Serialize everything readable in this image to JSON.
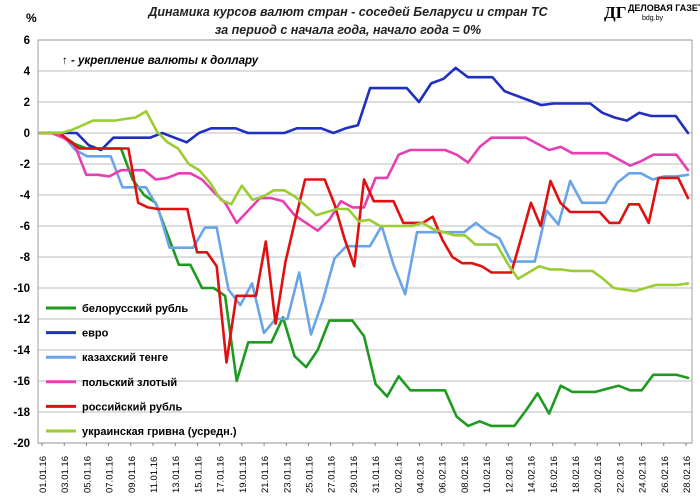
{
  "chart_data": {
    "type": "line",
    "title": "Динамика курсов валют стран - соседей Беларуси и стран ТС",
    "subtitle": "за период с начала года, начало года = 0%",
    "ylabel": "%",
    "annotation": "↑ - укрепление валюты к доллару",
    "ylim": [
      -20,
      6
    ],
    "yticks": [
      6,
      4,
      2,
      0,
      -2,
      -4,
      -6,
      -8,
      -10,
      -12,
      -14,
      -16,
      -18,
      -20
    ],
    "xlabels": [
      "01.01.16",
      "03.01.16",
      "05.01.16",
      "07.01.16",
      "09.01.16",
      "11.01.16",
      "13.01.16",
      "15.01.16",
      "17.01.16",
      "19.01.16",
      "21.01.16",
      "23.01.16",
      "25.01.16",
      "27.01.16",
      "29.01.16",
      "31.01.16",
      "02.02.16",
      "04.02.16",
      "06.02.16",
      "08.02.16",
      "10.02.16",
      "12.02.16",
      "14.02.16",
      "16.02.16",
      "18.02.16",
      "20.02.16",
      "22.02.16",
      "24.02.16",
      "26.02.16",
      "28.02.16"
    ],
    "grid": "horizontal",
    "legend_position": "bottom-left",
    "series": [
      {
        "name": "белорусский рубль",
        "color": "#1e9a1e",
        "values": [
          0,
          0,
          -0.2,
          -0.7,
          -1,
          -1,
          -1,
          -1,
          -3,
          -4,
          -4.5,
          -6.5,
          -8.5,
          -8.5,
          -10,
          -10,
          -10.5,
          -16,
          -13.5,
          -13.5,
          -13.5,
          -11.9,
          -14.4,
          -15.1,
          -14,
          -12.1,
          -12.1,
          -12.1,
          -13.1,
          -16.2,
          -17,
          -15.7,
          -16.6,
          -16.6,
          -16.6,
          -16.6,
          -18.3,
          -18.9,
          -18.6,
          -18.9,
          -18.9,
          -18.9,
          -17.9,
          -16.8,
          -18.1,
          -16.3,
          -16.7,
          -16.7,
          -16.7,
          -16.5,
          -16.3,
          -16.6,
          -16.6,
          -15.6,
          -15.6,
          -15.6,
          -15.8
        ]
      },
      {
        "name": "евро",
        "color": "#1f2fbf",
        "values": [
          0,
          0,
          0,
          0,
          -0.8,
          -1.1,
          -0.3,
          -0.3,
          -0.3,
          -0.3,
          0,
          -0.3,
          -0.6,
          0,
          0.3,
          0.3,
          0.3,
          0,
          0,
          0,
          0,
          0.3,
          0.3,
          0.3,
          0,
          0.3,
          0.5,
          2.9,
          2.9,
          2.9,
          2.9,
          2.0,
          3.2,
          3.5,
          4.2,
          3.6,
          3.6,
          3.6,
          2.7,
          2.4,
          2.1,
          1.8,
          1.9,
          1.9,
          1.9,
          1.9,
          1.3,
          1.0,
          0.8,
          1.3,
          1.1,
          1.1,
          1.1,
          0
        ]
      },
      {
        "name": "казахский тенге",
        "color": "#6aa4e8",
        "values": [
          0,
          0,
          -0.2,
          -1.1,
          -1.5,
          -1.5,
          -1.5,
          -3.5,
          -3.5,
          -3.5,
          -4.8,
          -7.4,
          -7.4,
          -7.4,
          -6.1,
          -6.1,
          -10.1,
          -11.1,
          -9.7,
          -12.9,
          -12.0,
          -12.0,
          -9.0,
          -13.0,
          -10.8,
          -8.1,
          -7.3,
          -7.3,
          -7.3,
          -6.0,
          -8.5,
          -10.4,
          -6.4,
          -6.4,
          -6.4,
          -6.4,
          -6.4,
          -5.8,
          -6.4,
          -6.8,
          -8.3,
          -8.3,
          -8.3,
          -5.0,
          -5.9,
          -3.1,
          -4.5,
          -4.5,
          -4.5,
          -3.2,
          -2.6,
          -2.6,
          -3.0,
          -2.8,
          -2.8,
          -2.7
        ]
      },
      {
        "name": "польский злотый",
        "color": "#e83fb0",
        "values": [
          0,
          0,
          -0.3,
          -0.8,
          -2.7,
          -2.7,
          -2.8,
          -2.4,
          -2.4,
          -2.4,
          -3.0,
          -2.9,
          -2.6,
          -2.6,
          -3.0,
          -3.8,
          -4.5,
          -5.8,
          -5.0,
          -4.2,
          -4.2,
          -4.4,
          -5.3,
          -5.8,
          -6.3,
          -5.6,
          -4.4,
          -4.8,
          -4.8,
          -2.9,
          -2.9,
          -1.4,
          -1.1,
          -1.1,
          -1.1,
          -1.1,
          -1.4,
          -1.9,
          -0.9,
          -0.3,
          -0.3,
          -0.3,
          -0.3,
          -0.7,
          -1.1,
          -0.9,
          -1.3,
          -1.3,
          -1.3,
          -1.3,
          -1.7,
          -2.1,
          -1.8,
          -1.4,
          -1.4,
          -1.4,
          -2.4
        ]
      },
      {
        "name": "российский рубль",
        "color": "#e01010",
        "values": [
          0,
          0,
          0,
          -0.5,
          -1,
          -1,
          -1,
          -1,
          -1,
          -1,
          -4.5,
          -4.8,
          -4.9,
          -4.9,
          -4.9,
          -4.9,
          -7.7,
          -7.7,
          -8.6,
          -14.8,
          -10.5,
          -10.5,
          -10.5,
          -7.0,
          -12.3,
          -8.3,
          -5.6,
          -3.0,
          -3.0,
          -3.0,
          -4.6,
          -6.8,
          -8.6,
          -3.0,
          -4.4,
          -4.4,
          -4.4,
          -5.8,
          -5.8,
          -5.8,
          -5.4,
          -6.9,
          -8.0,
          -8.4,
          -8.4,
          -8.6,
          -9.0,
          -9.0,
          -9.0,
          -6.8,
          -4.5,
          -6.0,
          -3.1,
          -4.5,
          -5.1,
          -5.1,
          -5.1,
          -5.1,
          -5.8,
          -5.8,
          -4.6,
          -4.6,
          -5.8,
          -2.9,
          -2.9,
          -2.9,
          -4.2
        ]
      },
      {
        "name": "украинская гривна (усредн.)",
        "color": "#9acd32",
        "values": [
          0,
          0,
          0,
          0.2,
          0.5,
          0.8,
          0.8,
          0.8,
          0.9,
          1.0,
          1.4,
          0.1,
          -0.6,
          -1.0,
          -2.0,
          -2.4,
          -3.2,
          -4.3,
          -4.6,
          -3.4,
          -4.3,
          -4.1,
          -3.7,
          -3.7,
          -4.1,
          -4.7,
          -5.3,
          -5.1,
          -4.9,
          -4.9,
          -5.7,
          -5.6,
          -6.0,
          -6.0,
          -6.0,
          -6.0,
          -5.8,
          -6.2,
          -6.4,
          -6.6,
          -6.6,
          -7.2,
          -7.2,
          -7.2,
          -8.4,
          -9.4,
          -9.0,
          -8.6,
          -8.8,
          -8.8,
          -8.9,
          -8.9,
          -8.9,
          -9.4,
          -10.0,
          -10.1,
          -10.2,
          -10.0,
          -9.8,
          -9.8,
          -9.8,
          -9.7
        ]
      }
    ]
  },
  "logo": {
    "mark": "ДГ",
    "name": "ДЕЛОВАЯ ГАЗЕТА",
    "site": "bdg.by"
  }
}
